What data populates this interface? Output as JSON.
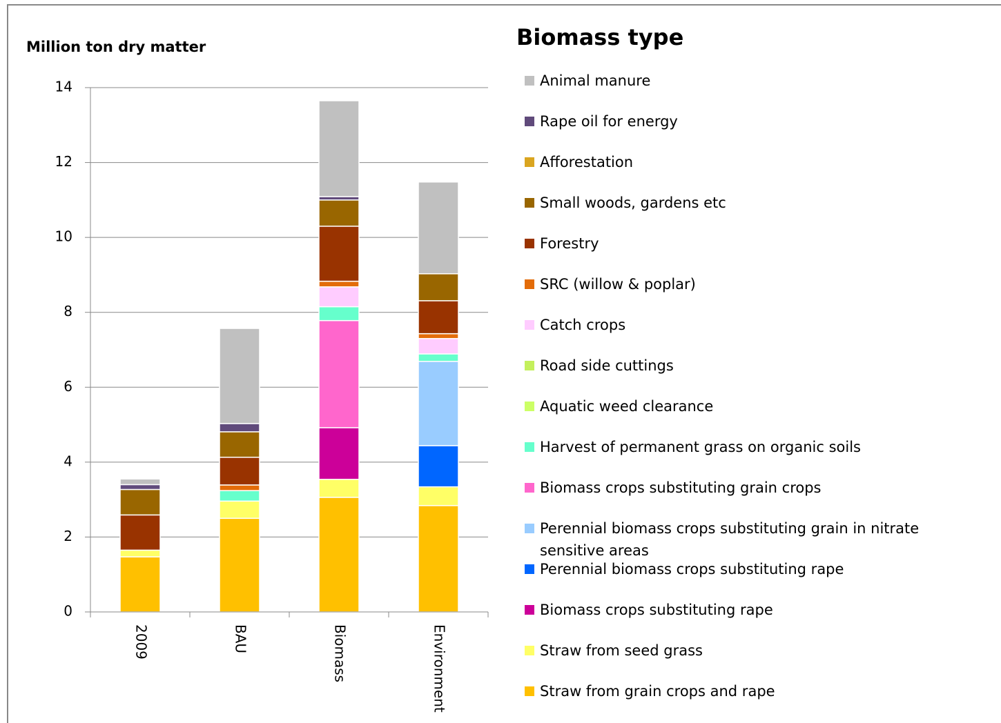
{
  "chart_data": {
    "type": "stacked_bar",
    "y_label": "Million ton dry matter",
    "legend_title": "Biomass type",
    "categories": [
      "2009",
      "BAU",
      "Biomass",
      "Environment"
    ],
    "ylim": [
      0,
      14
    ],
    "yticks": [
      0,
      2,
      4,
      6,
      8,
      10,
      12,
      14
    ],
    "grid": true,
    "series": [
      {
        "name": "Straw from grain crops and rape",
        "color": "#ffc000",
        "values": [
          1.47,
          2.5,
          3.06,
          2.84
        ]
      },
      {
        "name": "Straw from seed grass",
        "color": "#ffff66",
        "values": [
          0.18,
          0.46,
          0.48,
          0.5
        ]
      },
      {
        "name": "Biomass crops substituting rape",
        "color": "#cc0099",
        "values": [
          0,
          0,
          1.38,
          0
        ]
      },
      {
        "name": "Perennial biomass crops substituting rape",
        "color": "#0066ff",
        "values": [
          0,
          0,
          0,
          1.1
        ]
      },
      {
        "name": "Perennial biomass crops substituting grain in nitrate sensitive areas",
        "color": "#99ccff",
        "values": [
          0,
          0,
          0,
          2.25
        ]
      },
      {
        "name": "Biomass crops substituting grain crops",
        "color": "#ff66cc",
        "values": [
          0,
          0,
          2.86,
          0
        ]
      },
      {
        "name": "Harvest of permanent grass on organic soils",
        "color": "#66ffcc",
        "values": [
          0,
          0.28,
          0.37,
          0.2
        ]
      },
      {
        "name": "Aquatic weed clearance",
        "color": "#ccff66",
        "values": [
          0,
          0,
          0,
          0
        ]
      },
      {
        "name": "Road side cuttings",
        "color": "#c4f05c",
        "values": [
          0,
          0,
          0,
          0
        ]
      },
      {
        "name": "Catch crops",
        "color": "#ffccff",
        "values": [
          0,
          0,
          0.53,
          0.41
        ]
      },
      {
        "name": "SRC (willow & poplar)",
        "color": "#e36c09",
        "values": [
          0,
          0.15,
          0.15,
          0.13
        ]
      },
      {
        "name": "Forestry",
        "color": "#993300",
        "values": [
          0.94,
          0.74,
          1.47,
          0.88
        ]
      },
      {
        "name": "Small woods, gardens etc",
        "color": "#996600",
        "values": [
          0.68,
          0.68,
          0.7,
          0.72
        ]
      },
      {
        "name": "Afforestation",
        "color": "#daa520",
        "values": [
          0,
          0,
          0,
          0
        ]
      },
      {
        "name": "Rape oil for energy",
        "color": "#604a7b",
        "values": [
          0.13,
          0.22,
          0.09,
          0
        ]
      },
      {
        "name": "Animal manure",
        "color": "#c0c0c0",
        "values": [
          0.15,
          2.54,
          2.56,
          2.45
        ]
      }
    ]
  }
}
